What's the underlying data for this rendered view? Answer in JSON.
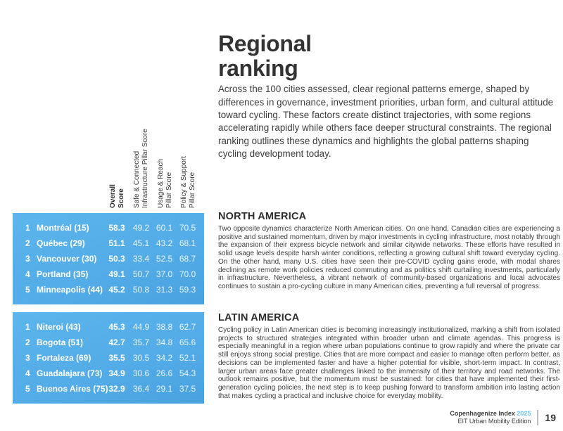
{
  "colors": {
    "table_blue": "#54ACE8",
    "year_blue": "#6EC8F3",
    "title_dark": "#333333"
  },
  "header": {
    "title_line1": "Regional",
    "title_line2": "ranking",
    "intro": "Across the 100 cities assessed, clear regional patterns emerge, shaped by differences in governance, investment priorities, urban form, and cultural attitude toward cycling. These factors create distinct trajectories, with some regions accelerating rapidly while others face deeper structural constraints. The regional ranking outlines these dynamics and highlights the global patterns shaping cycling development today."
  },
  "pillar_headers": {
    "overall": "Overall\nScore",
    "infra": "Safe & Connected\nInfrastructure Pillar Score",
    "usage": "Usage & Reach\nPillar Score",
    "policy": "Policy & Support\nPillar Score"
  },
  "regions": [
    {
      "name": "NORTH AMERICA",
      "text": "Two opposite dynamics characterize North American cities. On one hand, Canadian cities are experiencing a positive and sustained momentum, driven by major investments in cycling infrastructure, most notably through the expansion of their express bicycle network and similar citywide networks. These efforts have resulted in solid usage levels despite harsh winter conditions, reflecting a growing cultural shift toward everyday cycling. On the other hand, many U.S. cities have seen their pre-COVID cycling gains erode, with modal shares declining as remote work policies reduced commuting and as politics shift curtailing investments, particularly in infrastructure. Nevertheless, a vibrant network of community-based organizations and local advocates continues to sustain a pro-cycling culture in many American cities, preventing a full reversal of progress.",
      "rows": [
        {
          "rank": "1",
          "city": "Montréal (15)",
          "overall": "58.3",
          "infra": "49.2",
          "usage": "60.1",
          "policy": "70.5"
        },
        {
          "rank": "2",
          "city": "Québec (29)",
          "overall": "51.1",
          "infra": "45.1",
          "usage": "43.2",
          "policy": "68.1"
        },
        {
          "rank": "3",
          "city": "Vancouver (30)",
          "overall": "50.3",
          "infra": "33.4",
          "usage": "52.5",
          "policy": "68.7"
        },
        {
          "rank": "4",
          "city": "Portland (35)",
          "overall": "49.1",
          "infra": "50.7",
          "usage": "37.0",
          "policy": "70.0"
        },
        {
          "rank": "5",
          "city": "Minneapolis (44)",
          "overall": "45.2",
          "infra": "50.8",
          "usage": "31.3",
          "policy": "59.3"
        }
      ]
    },
    {
      "name": "LATIN AMERICA",
      "text": "Cycling policy in Latin American cities is becoming increasingly institutionalized, marking a shift from isolated projects to structured strategies integrated within broader urban and climate agendas. This progress is especially meaningful in a region where urban populations continue to grow rapidly and where the private car still enjoys strong social prestige. Cities that are more compact and easier to manage often perform better, as decisions can be implemented faster and have a higher potential for visible, short-term impact. In contrast, larger urban areas face greater challenges linked to the immensity of their territory and road networks. The outlook remains positive, but the momentum must be sustained: for cities that have implemented their first-generation cycling policies, the next step is to keep pushing forward to transform ambition into lasting action that makes cycling a practical and inclusive choice for everyday mobility.",
      "rows": [
        {
          "rank": "1",
          "city": "Niteroi (43)",
          "overall": "45.3",
          "infra": "44.9",
          "usage": "38.8",
          "policy": "62.7"
        },
        {
          "rank": "2",
          "city": "Bogota (51)",
          "overall": "42.7",
          "infra": "35.7",
          "usage": "34.8",
          "policy": "65.6"
        },
        {
          "rank": "3",
          "city": "Fortaleza (69)",
          "overall": "35.5",
          "infra": "30.5",
          "usage": "34.2",
          "policy": "52.1"
        },
        {
          "rank": "4",
          "city": "Guadalajara (73)",
          "overall": "34.9",
          "infra": "30.6",
          "usage": "26.6",
          "policy": "54.3"
        },
        {
          "rank": "5",
          "city": "Buenos Aires (75)",
          "overall": "32.9",
          "infra": "36.4",
          "usage": "29.1",
          "policy": "37.5"
        }
      ]
    }
  ],
  "footer": {
    "brand": "Copenhagenize Index",
    "year": "2025",
    "edition": "EIT Urban Mobility Edition",
    "page_number": "19"
  }
}
